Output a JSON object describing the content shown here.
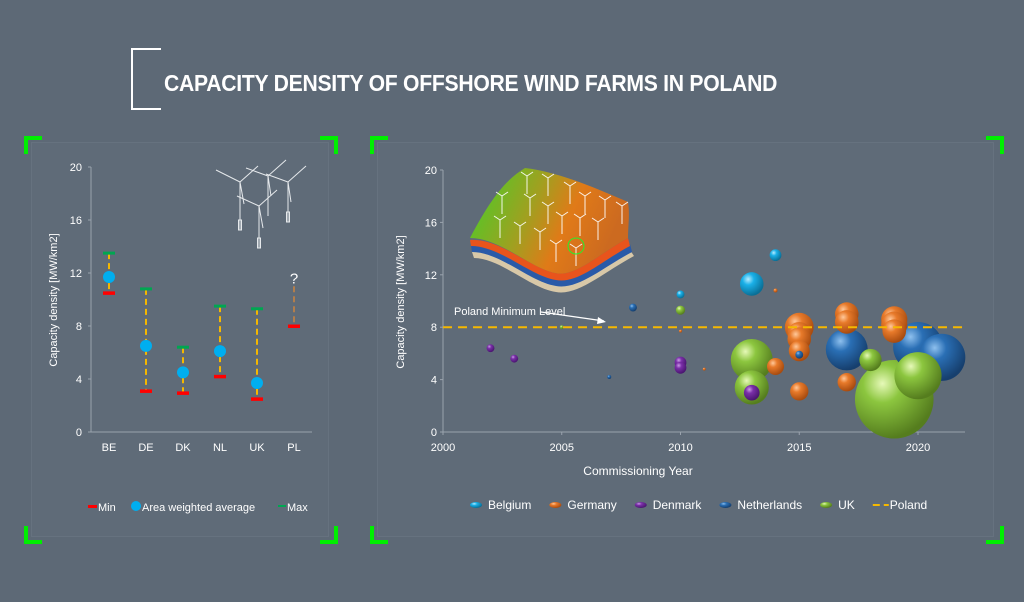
{
  "title": "CAPACITY DENSITY OF OFFSHORE WIND FARMS IN POLAND",
  "colors": {
    "background": "#5d6976",
    "frame_corner": "#00ee00",
    "min": "#ff0000",
    "avg": "#00aeef",
    "max": "#00a651",
    "whisker": "#f5b800",
    "belgium": "#1ab0e8",
    "germany": "#e87a2a",
    "denmark": "#7a2fa8",
    "netherlands": "#2a6fb5",
    "uk": "#8cc63f",
    "poland": "#f5b800"
  },
  "chart_data": [
    {
      "type": "errorbar",
      "title": "",
      "xlabel": "",
      "ylabel": "Capacity density [MW/km2]",
      "ylim": [
        0,
        20
      ],
      "yticks": [
        "0",
        "4",
        "8",
        "12",
        "16",
        "20"
      ],
      "categories": [
        "BE",
        "DE",
        "DK",
        "NL",
        "UK",
        "PL"
      ],
      "series": [
        {
          "name": "Min",
          "values": [
            10.5,
            3.1,
            2.95,
            4.2,
            2.5,
            8.0
          ]
        },
        {
          "name": "Area weighted average",
          "values": [
            11.7,
            6.5,
            4.5,
            6.1,
            3.7,
            null
          ]
        },
        {
          "name": "Max",
          "values": [
            13.5,
            10.8,
            6.4,
            9.5,
            9.3,
            null
          ]
        }
      ],
      "annotations": [
        {
          "category": "PL",
          "text": "?",
          "y": 11.5
        }
      ],
      "legend": {
        "position": "bottom",
        "entries": [
          "Min",
          "Area weighted average",
          "Max"
        ]
      }
    },
    {
      "type": "scatter",
      "title": "",
      "xlabel": "Commissioning Year",
      "ylabel": "Capacity density [MW/km2]",
      "xlim": [
        2000,
        2022
      ],
      "ylim": [
        0,
        20
      ],
      "xticks": [
        "2000",
        "2005",
        "2010",
        "2015",
        "2020"
      ],
      "yticks": [
        "0",
        "4",
        "8",
        "12",
        "16",
        "20"
      ],
      "annotation": "Poland Minimum Level",
      "reference_line": {
        "name": "Poland",
        "y": 8
      },
      "legend": {
        "position": "bottom",
        "entries": [
          "Belgium",
          "Germany",
          "Denmark",
          "Netherlands",
          "UK",
          "Poland"
        ]
      },
      "series": [
        {
          "name": "Belgium",
          "points": [
            [
              2010,
              10.5,
              0.3
            ],
            [
              2013,
              11.3,
              0.9
            ],
            [
              2014,
              13.5,
              0.45
            ]
          ]
        },
        {
          "name": "Germany",
          "points": [
            [
              2010,
              7.7,
              0.08
            ],
            [
              2011,
              4.8,
              0.08
            ],
            [
              2014,
              10.8,
              0.15
            ],
            [
              2014,
              5.0,
              0.65
            ],
            [
              2015,
              8.0,
              1.1
            ],
            [
              2015,
              7.5,
              0.9
            ],
            [
              2015,
              7.1,
              0.9
            ],
            [
              2015,
              6.2,
              0.8
            ],
            [
              2015,
              3.1,
              0.7
            ],
            [
              2017,
              9.0,
              0.9
            ],
            [
              2017,
              8.4,
              0.9
            ],
            [
              2017,
              3.8,
              0.7
            ],
            [
              2019,
              8.6,
              1.0
            ],
            [
              2019,
              8.2,
              1.0
            ],
            [
              2019,
              7.7,
              0.9
            ]
          ]
        },
        {
          "name": "Denmark",
          "points": [
            [
              2002,
              6.4,
              0.3
            ],
            [
              2003,
              5.6,
              0.3
            ],
            [
              2010,
              5.3,
              0.45
            ],
            [
              2010,
              4.9,
              0.45
            ],
            [
              2013,
              3.0,
              0.6
            ]
          ]
        },
        {
          "name": "Netherlands",
          "points": [
            [
              2007,
              4.2,
              0.15
            ],
            [
              2008,
              9.5,
              0.3
            ],
            [
              2015,
              5.9,
              0.3
            ],
            [
              2017,
              6.3,
              1.6
            ],
            [
              2020,
              6.5,
              1.9
            ],
            [
              2021,
              5.7,
              1.8
            ]
          ]
        },
        {
          "name": "UK",
          "points": [
            [
              2005,
              8.0,
              0.15
            ],
            [
              2010,
              9.3,
              0.35
            ],
            [
              2013,
              5.5,
              1.6
            ],
            [
              2013,
              3.4,
              1.3
            ],
            [
              2018,
              5.5,
              0.85
            ],
            [
              2019,
              2.5,
              3.0
            ],
            [
              2020,
              4.3,
              1.8
            ]
          ]
        }
      ]
    }
  ]
}
